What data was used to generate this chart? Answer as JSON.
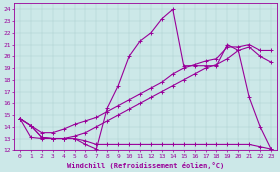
{
  "xlabel": "Windchill (Refroidissement éolien,°C)",
  "bg_color": "#cce8e8",
  "line_color": "#990099",
  "xlim": [
    -0.5,
    23.5
  ],
  "ylim": [
    12,
    24.5
  ],
  "yticks": [
    12,
    13,
    14,
    15,
    16,
    17,
    18,
    19,
    20,
    21,
    22,
    23,
    24
  ],
  "xticks": [
    0,
    1,
    2,
    3,
    4,
    5,
    6,
    7,
    8,
    9,
    10,
    11,
    12,
    13,
    14,
    15,
    16,
    17,
    18,
    19,
    20,
    21,
    22,
    23
  ],
  "series": [
    {
      "x": [
        0,
        1,
        2,
        3,
        4,
        5,
        6,
        7,
        8,
        9,
        10,
        11,
        12,
        13,
        14,
        15,
        16,
        17,
        18,
        19,
        20,
        21,
        22,
        23
      ],
      "y": [
        14.7,
        14.1,
        13.1,
        13.0,
        13.0,
        13.0,
        12.5,
        12.1,
        15.6,
        17.5,
        20.0,
        21.3,
        22.0,
        23.2,
        24.0,
        19.2,
        19.2,
        19.2,
        19.2,
        21.0,
        20.5,
        16.5,
        14.0,
        12.1
      ]
    },
    {
      "x": [
        0,
        1,
        2,
        3,
        4,
        5,
        6,
        7,
        8,
        9,
        10,
        11,
        12,
        13,
        14,
        15,
        16,
        17,
        18,
        19,
        20,
        21,
        22,
        23
      ],
      "y": [
        14.7,
        14.1,
        13.5,
        13.5,
        13.8,
        14.2,
        14.5,
        14.8,
        15.3,
        15.8,
        16.3,
        16.8,
        17.3,
        17.8,
        18.5,
        19.0,
        19.3,
        19.6,
        19.8,
        20.8,
        20.8,
        21.0,
        20.5,
        20.5
      ]
    },
    {
      "x": [
        0,
        1,
        2,
        3,
        4,
        5,
        6,
        7,
        8,
        9,
        10,
        11,
        12,
        13,
        14,
        15,
        16,
        17,
        18,
        19,
        20,
        21,
        22,
        23
      ],
      "y": [
        14.7,
        14.1,
        13.1,
        13.0,
        13.0,
        13.2,
        13.5,
        14.0,
        14.5,
        15.0,
        15.5,
        16.0,
        16.5,
        17.0,
        17.5,
        18.0,
        18.5,
        19.0,
        19.3,
        19.8,
        20.5,
        20.8,
        20.0,
        19.5
      ]
    },
    {
      "x": [
        0,
        1,
        2,
        3,
        4,
        5,
        6,
        7,
        8,
        9,
        10,
        11,
        12,
        13,
        14,
        15,
        16,
        17,
        18,
        19,
        20,
        21,
        22,
        23
      ],
      "y": [
        14.7,
        13.1,
        13.0,
        13.0,
        13.0,
        13.0,
        12.8,
        12.5,
        12.5,
        12.5,
        12.5,
        12.5,
        12.5,
        12.5,
        12.5,
        12.5,
        12.5,
        12.5,
        12.5,
        12.5,
        12.5,
        12.5,
        12.3,
        12.1
      ]
    }
  ]
}
